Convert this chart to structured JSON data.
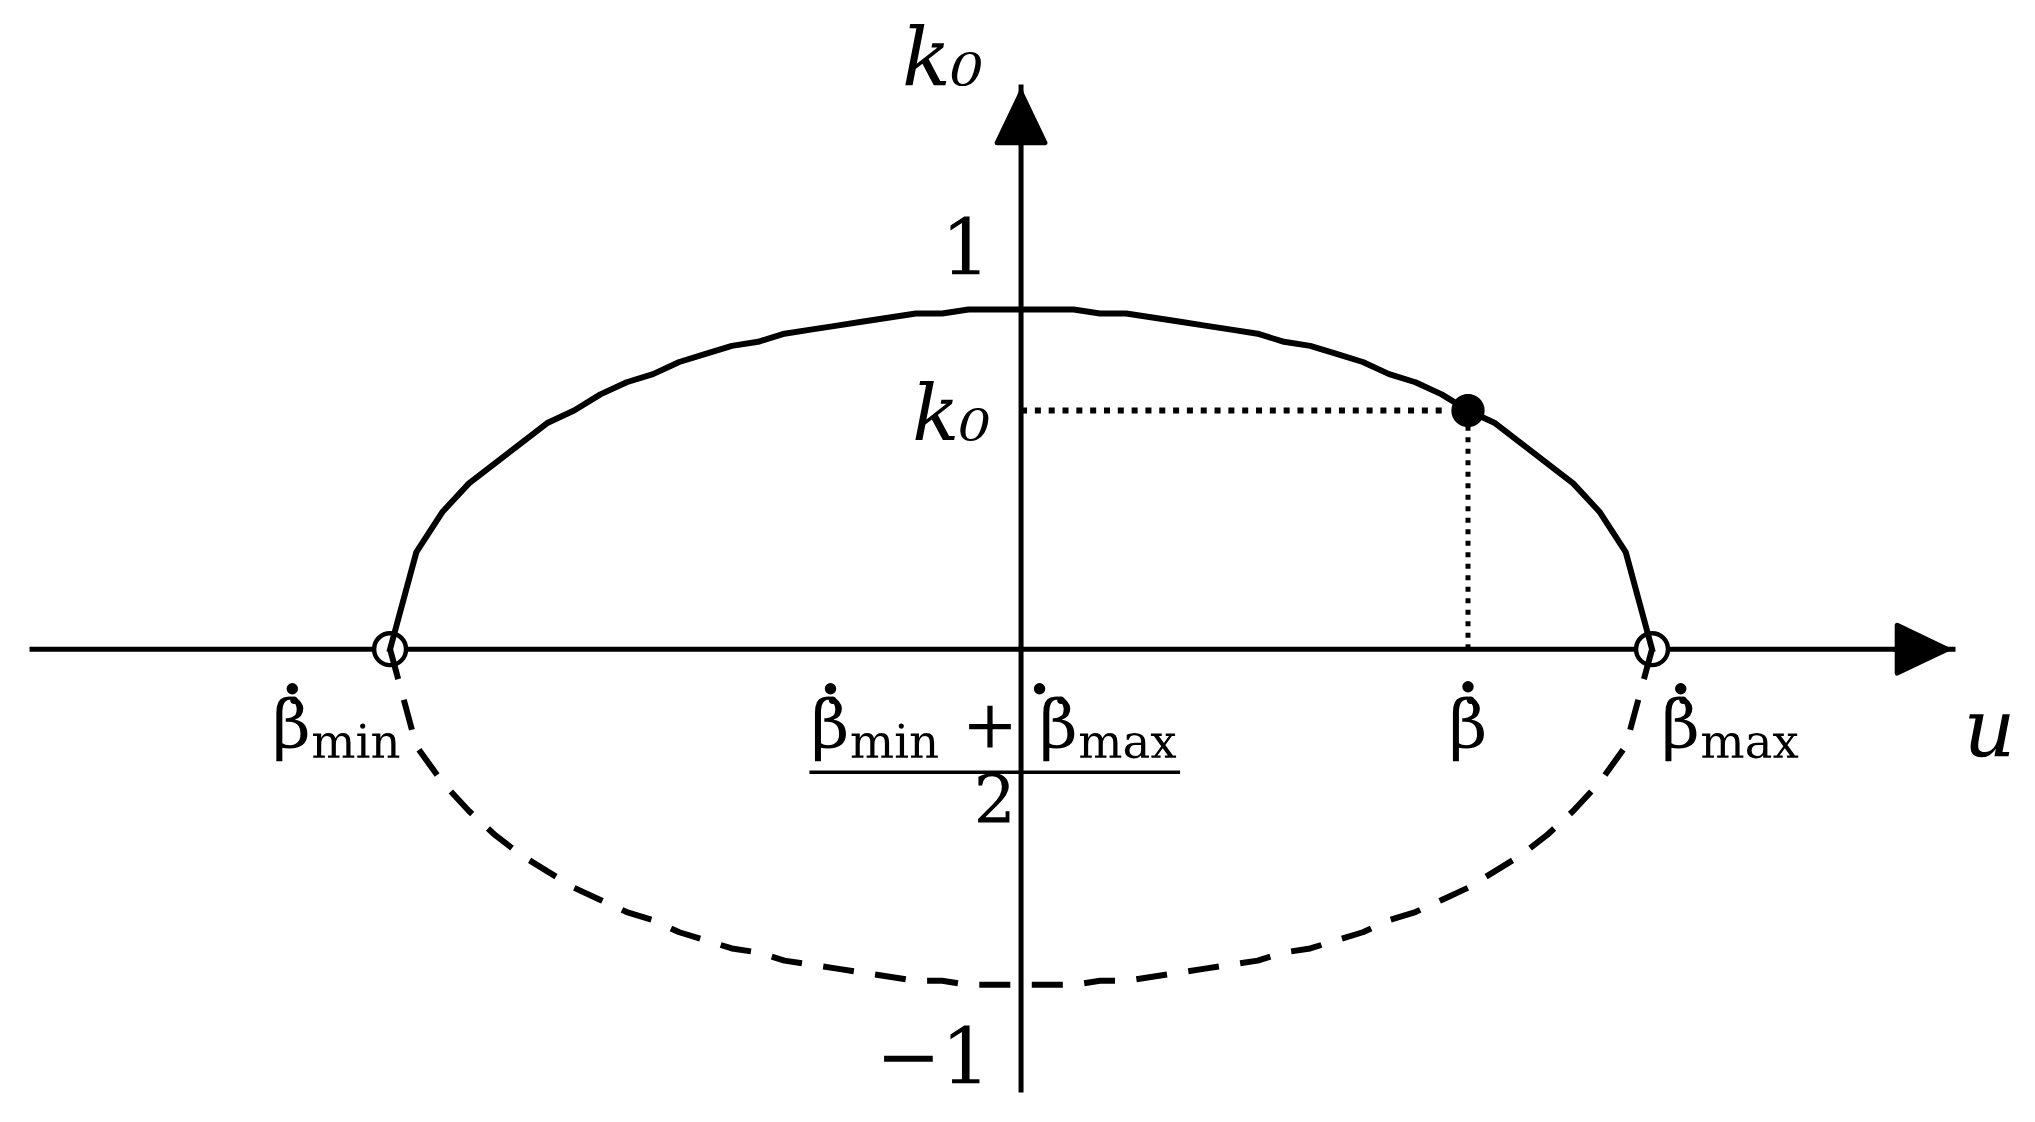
{
  "chart_data": {
    "type": "line",
    "xlabel": "u",
    "ylabel": "k₀",
    "categories": [
      "β̇$_{min}$",
      null,
      null,
      null,
      null,
      null,
      null,
      null,
      null,
      null,
      null,
      null,
      null,
      null,
      null,
      null,
      null,
      null,
      null,
      null,
      null,
      null,
      null,
      null,
      null,
      "β̇$_{min}$ + β̇$_{max}$\n2",
      null,
      null,
      null,
      null,
      null,
      null,
      null,
      null,
      null,
      null,
      null,
      null,
      null,
      null,
      null,
      null,
      null,
      "β̇",
      null,
      null,
      null,
      null,
      null,
      null,
      null,
      null,
      null,
      "β̇$_{max}$"
    ],
    "ylim": [
      -1.09,
      1.39
    ],
    "yticks": [
      {
        "value": -1,
        "label": "−1"
      },
      {
        "value": 0.59,
        "label": "k₀"
      },
      1
    ],
    "series": [
      {
        "color": "#000000",
        "line_style": "solid",
        "values": [
          null,
          null,
          0,
          0.24,
          0.34,
          0.41,
          0.46,
          0.51,
          0.56,
          0.59,
          0.63,
          0.66,
          0.68,
          0.71,
          0.73,
          0.75,
          0.76,
          0.78,
          0.79,
          0.8,
          0.81,
          0.82,
          0.83,
          0.83,
          0.84,
          0.84,
          0.84,
          0.84,
          0.84,
          0.83,
          0.83,
          0.82,
          0.81,
          0.8,
          0.79,
          0.78,
          0.76,
          0.75,
          0.73,
          0.71,
          0.68,
          0.66,
          0.63,
          0.59,
          0.56,
          0.51,
          0.46,
          0.41,
          0.34,
          0.24,
          0,
          null,
          null,
          null
        ]
      },
      {
        "color": "#000000",
        "line_style": "dashed",
        "values": [
          null,
          null,
          0,
          -0.24,
          -0.33,
          -0.4,
          -0.46,
          -0.51,
          -0.55,
          -0.59,
          -0.62,
          -0.65,
          -0.67,
          -0.7,
          -0.72,
          -0.74,
          -0.75,
          -0.77,
          -0.78,
          -0.79,
          -0.8,
          -0.81,
          -0.82,
          -0.82,
          -0.83,
          -0.83,
          -0.83,
          -0.83,
          -0.83,
          -0.82,
          -0.82,
          -0.81,
          -0.8,
          -0.79,
          -0.78,
          -0.77,
          -0.75,
          -0.74,
          -0.72,
          -0.7,
          -0.67,
          -0.65,
          -0.62,
          -0.59,
          -0.55,
          -0.51,
          -0.46,
          -0.4,
          -0.33,
          -0.24,
          0,
          null,
          null,
          null
        ]
      },
      {
        "color": "#000000",
        "line_style": "dotted",
        "values": [
          null,
          null,
          null,
          null,
          null,
          null,
          null,
          null,
          null,
          null,
          null,
          null,
          null,
          null,
          null,
          null,
          null,
          null,
          null,
          null,
          null,
          null,
          null,
          null,
          null,
          null,
          0.59,
          0.59,
          0.59,
          0.59,
          0.59,
          0.59,
          0.59,
          0.59,
          0.59,
          0.59,
          0.59,
          0.59,
          0.59,
          0.59,
          0.59,
          0.59,
          0.59,
          null,
          null,
          null,
          null,
          null,
          null,
          null,
          null,
          null,
          null,
          null
        ]
      },
      {
        "type": "lollipop",
        "color": "#000000",
        "line_style": "dotted",
        "marker": "circle",
        "values": [
          null,
          null,
          null,
          null,
          null,
          null,
          null,
          null,
          null,
          null,
          null,
          null,
          null,
          null,
          null,
          null,
          null,
          null,
          null,
          null,
          null,
          null,
          null,
          null,
          null,
          null,
          null,
          null,
          null,
          null,
          null,
          null,
          null,
          null,
          null,
          null,
          null,
          null,
          null,
          null,
          null,
          null,
          null,
          0.59,
          null,
          null,
          null,
          null,
          null,
          null,
          null,
          null,
          null,
          null
        ]
      },
      {
        "type": "scatter",
        "color": "#000000",
        "marker": "circle",
        "values": [
          null,
          null,
          0,
          null,
          null,
          null,
          null,
          null,
          null,
          null,
          null,
          null,
          null,
          null,
          null,
          null,
          null,
          null,
          null,
          null,
          null,
          null,
          null,
          null,
          null,
          null,
          null,
          null,
          null,
          null,
          null,
          null,
          null,
          null,
          null,
          null,
          null,
          null,
          null,
          null,
          null,
          null,
          null,
          null,
          null,
          null,
          null,
          null,
          null,
          null,
          0,
          null,
          null,
          null
        ]
      }
    ]
  }
}
